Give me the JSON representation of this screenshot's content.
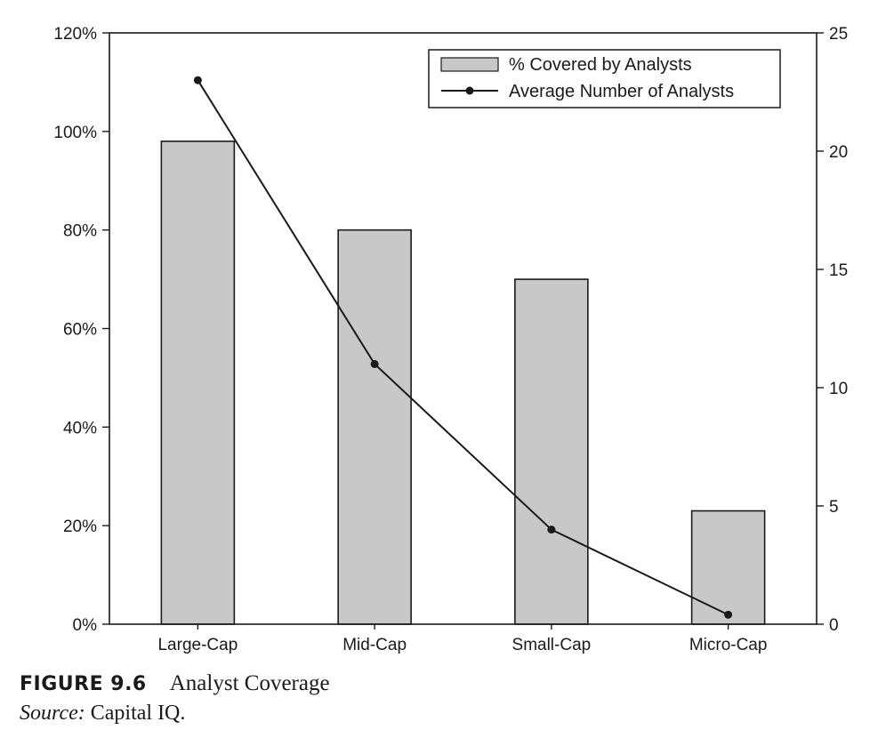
{
  "figure": {
    "label": "FIGURE 9.6",
    "title": "Analyst Coverage",
    "source_label": "Source:",
    "source_text": "Capital IQ."
  },
  "chart_data": {
    "type": "bar",
    "categories": [
      "Large-Cap",
      "Mid-Cap",
      "Small-Cap",
      "Micro-Cap"
    ],
    "series": [
      {
        "name": "% Covered by Analysts",
        "type": "bar",
        "axis": "left",
        "values": [
          98,
          80,
          70,
          23
        ]
      },
      {
        "name": "Average Number of Analysts",
        "type": "line",
        "axis": "right",
        "values": [
          23,
          11,
          4,
          0.4
        ]
      }
    ],
    "left_axis": {
      "ylim": [
        0,
        120
      ],
      "ticks": [
        0,
        20,
        40,
        60,
        80,
        100,
        120
      ],
      "tick_labels": [
        "0%",
        "20%",
        "40%",
        "60%",
        "80%",
        "100%",
        "120%"
      ]
    },
    "right_axis": {
      "ylim": [
        0,
        25
      ],
      "ticks": [
        0,
        5,
        10,
        15,
        20,
        25
      ],
      "tick_labels": [
        "0",
        "5",
        "10",
        "15",
        "20",
        "25"
      ]
    },
    "legend": {
      "placement": "top-right"
    },
    "grid": false,
    "colors": {
      "bar_fill": "#c8c8c8",
      "bar_stroke": "#1a1a1a",
      "line": "#1a1a1a",
      "axis": "#1a1a1a"
    }
  }
}
